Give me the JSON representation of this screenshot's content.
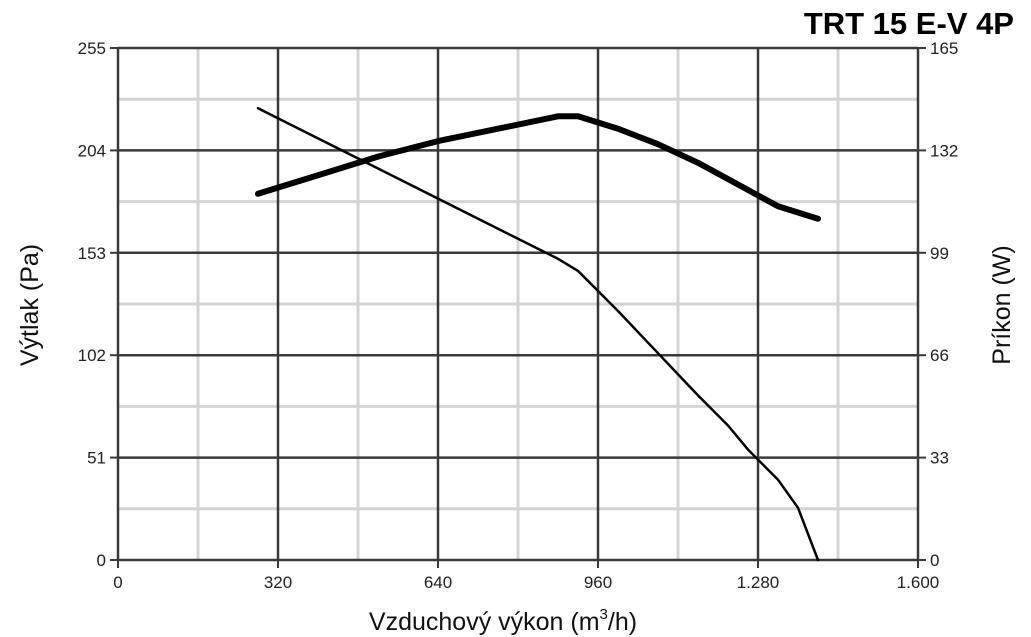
{
  "chart_data": {
    "type": "line",
    "title": "TRT 15 E-V 4P",
    "xlabel": "Vzduchový výkon (m",
    "xlabel_sup": "3",
    "xlabel_tail": "/h)",
    "ylabel": "Výtlak (Pa)",
    "y2label": "Príkon (W)",
    "xlim": [
      0,
      1600
    ],
    "ylim": [
      0,
      255
    ],
    "y2lim": [
      0,
      165
    ],
    "x_ticks": [
      0,
      320,
      640,
      960,
      1280,
      1600
    ],
    "x_tick_labels": [
      "0",
      "320",
      "640",
      "960",
      "1.280",
      "1.600"
    ],
    "y_ticks": [
      0,
      51,
      102,
      153,
      204,
      255
    ],
    "y_tick_labels": [
      "0",
      "51",
      "102",
      "153",
      "204",
      "255"
    ],
    "y2_ticks": [
      0,
      33,
      66,
      99,
      132,
      165
    ],
    "y2_tick_labels": [
      "0",
      "33",
      "66",
      "99",
      "132",
      "165"
    ],
    "grid": true,
    "series": [
      {
        "axis": "left",
        "style": "thin",
        "x": [
          280,
          400,
          520,
          640,
          760,
          880,
          920,
          1000,
          1080,
          1160,
          1220,
          1260,
          1320,
          1360,
          1400
        ],
        "y": [
          225,
          210,
          195,
          180,
          165,
          150,
          144,
          124,
          103,
          82,
          67,
          55,
          40,
          26,
          0
        ]
      },
      {
        "axis": "right",
        "style": "thick",
        "x": [
          280,
          400,
          520,
          640,
          760,
          880,
          920,
          1000,
          1080,
          1160,
          1240,
          1320,
          1400
        ],
        "y": [
          118,
          124,
          130,
          135,
          139,
          143,
          143,
          139,
          134,
          128,
          121,
          114,
          110
        ]
      }
    ]
  }
}
